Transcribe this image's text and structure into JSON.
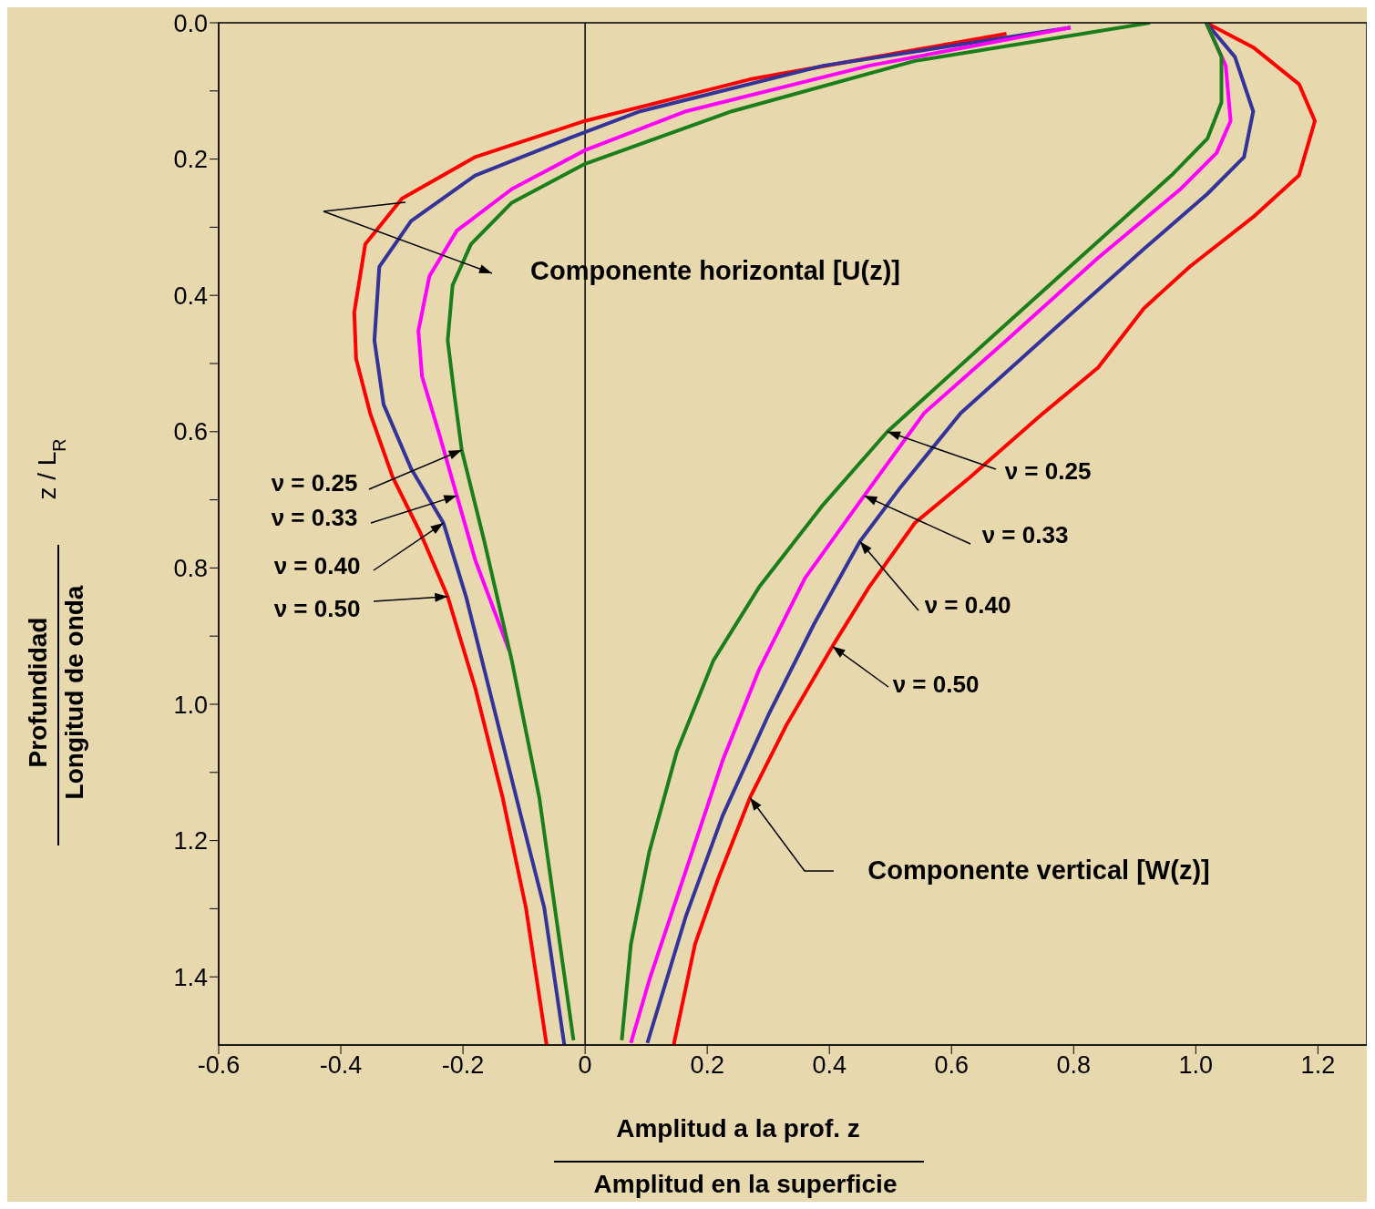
{
  "chart_data": {
    "type": "line",
    "xlabel": "Amplitud a la prof. z",
    "ylabel": "Profundidad",
    "xlim": [
      -0.6,
      1.28
    ],
    "ylim": [
      1.5,
      0
    ],
    "xticks": [
      -0.6,
      -0.4,
      -0.2,
      0,
      0.2,
      0.4,
      0.6,
      0.8,
      {
        "value": 1,
        "label": "1.0"
      },
      1.2
    ],
    "yticks": [
      {
        "value": 0,
        "label": "0.0"
      },
      {
        "value": 0.1,
        "label": null
      },
      0.2,
      {
        "value": 0.3,
        "label": null
      },
      0.4,
      {
        "value": 0.5,
        "label": null
      },
      0.6,
      {
        "value": 0.7,
        "label": null
      },
      0.8,
      {
        "value": 0.9,
        "label": null
      },
      {
        "value": 1,
        "label": "1.0"
      },
      {
        "value": 1.1,
        "label": null
      },
      1.2,
      {
        "value": 1.3,
        "label": null
      },
      1.4
    ],
    "marker": "none",
    "line_style": "solid",
    "ref_lines": [
      {
        "axis": "x",
        "value": 0,
        "color": "#000000"
      }
    ],
    "series": [
      {
        "color": "#ff0000",
        "x": [
          0.69,
          0.27,
          0,
          -0.18,
          -0.3,
          -0.36,
          -0.378,
          -0.375,
          -0.352,
          -0.315,
          -0.27,
          -0.225,
          -0.18,
          -0.135,
          -0.097,
          -0.063
        ],
        "values": [
          0.016,
          0.083,
          0.144,
          0.197,
          0.258,
          0.325,
          0.425,
          0.493,
          0.573,
          0.667,
          0.748,
          0.842,
          0.976,
          1.137,
          1.298,
          1.5
        ]
      },
      {
        "color": "#333399",
        "x": [
          0.795,
          0.39,
          0.09,
          -0.022,
          -0.18,
          -0.285,
          -0.337,
          -0.345,
          -0.33,
          -0.285,
          -0.232,
          -0.195,
          -0.15,
          -0.105,
          -0.067,
          -0.034
        ],
        "values": [
          0.007,
          0.063,
          0.13,
          0.168,
          0.224,
          0.291,
          0.358,
          0.466,
          0.56,
          0.654,
          0.734,
          0.842,
          1.003,
          1.164,
          1.298,
          1.5
        ]
      },
      {
        "color": "#ff00ff",
        "x": [
          0.795,
          0.465,
          0.165,
          0,
          -0.12,
          -0.21,
          -0.255,
          -0.273,
          -0.267,
          -0.24,
          -0.21,
          -0.18,
          -0.124
        ],
        "values": [
          0.007,
          0.063,
          0.13,
          0.187,
          0.244,
          0.305,
          0.372,
          0.452,
          0.519,
          0.6,
          0.694,
          0.788,
          0.922
        ]
      },
      {
        "color": "#1a7f1a",
        "x": [
          0.925,
          0.54,
          0.24,
          0,
          -0.12,
          -0.187,
          -0.217,
          -0.225,
          -0.214,
          -0.202,
          -0.165,
          -0.12,
          -0.075,
          -0.019
        ],
        "values": [
          0,
          0.056,
          0.13,
          0.207,
          0.264,
          0.325,
          0.385,
          0.466,
          0.546,
          0.627,
          0.761,
          0.936,
          1.137,
          1.493
        ]
      },
      {
        "color": "#ff0000",
        "x": [
          1.017,
          1.094,
          1.169,
          1.195,
          1.169,
          1.094,
          0.99,
          0.915,
          0.84,
          0.75,
          0.63,
          0.54,
          0.465,
          0.405,
          0.33,
          0.27,
          0.217,
          0.18,
          0.145
        ],
        "values": [
          0,
          0.036,
          0.09,
          0.144,
          0.224,
          0.285,
          0.358,
          0.419,
          0.506,
          0.573,
          0.667,
          0.734,
          0.828,
          0.915,
          1.03,
          1.137,
          1.258,
          1.352,
          1.5
        ]
      },
      {
        "color": "#333399",
        "x": [
          1.017,
          1.064,
          1.094,
          1.079,
          1.019,
          0.915,
          0.765,
          0.615,
          0.517,
          0.45,
          0.375,
          0.3,
          0.225,
          0.165,
          0.102
        ],
        "values": [
          0,
          0.05,
          0.13,
          0.197,
          0.251,
          0.332,
          0.452,
          0.573,
          0.681,
          0.761,
          0.882,
          1.016,
          1.164,
          1.311,
          1.497
        ]
      },
      {
        "color": "#ff00ff",
        "x": [
          1.017,
          1.049,
          1.057,
          1.034,
          0.975,
          0.84,
          0.69,
          0.555,
          0.457,
          0.36,
          0.285,
          0.225,
          0.165,
          0.105,
          0.075
        ],
        "values": [
          0,
          0.063,
          0.144,
          0.191,
          0.244,
          0.345,
          0.466,
          0.573,
          0.694,
          0.815,
          0.949,
          1.083,
          1.244,
          1.405,
          1.497
        ]
      },
      {
        "color": "#1a7f1a",
        "x": [
          1.017,
          1.042,
          1.042,
          1.019,
          0.96,
          0.81,
          0.66,
          0.495,
          0.39,
          0.285,
          0.21,
          0.15,
          0.105,
          0.075,
          0.06
        ],
        "values": [
          0,
          0.05,
          0.117,
          0.17,
          0.224,
          0.345,
          0.466,
          0.6,
          0.707,
          0.828,
          0.936,
          1.07,
          1.217,
          1.352,
          1.493
        ]
      }
    ],
    "annotations": [
      {
        "text": "ν = 0.25",
        "x": -0.202,
        "y": 0.627
      },
      {
        "text": "ν = 0.33",
        "x": -0.21,
        "y": 0.694
      },
      {
        "text": "ν = 0.40",
        "x": -0.232,
        "y": 0.734
      },
      {
        "text": "ν = 0.50",
        "x": -0.225,
        "y": 0.842
      },
      {
        "text": "ν = 0.25",
        "x": 0.495,
        "y": 0.6
      },
      {
        "text": "ν = 0.33",
        "x": 0.457,
        "y": 0.694
      },
      {
        "text": "ν = 0.40",
        "x": 0.45,
        "y": 0.761
      },
      {
        "text": "ν = 0.50",
        "x": 0.405,
        "y": 0.915
      },
      "Componente horizontal [U(z)]",
      {
        "text": "Componente vertical [W(z)]",
        "x": 0.27,
        "y": 1.137
      },
      "z / L$_{R}$",
      "Amplitud en la superficie",
      "Longitud de onda"
    ]
  }
}
